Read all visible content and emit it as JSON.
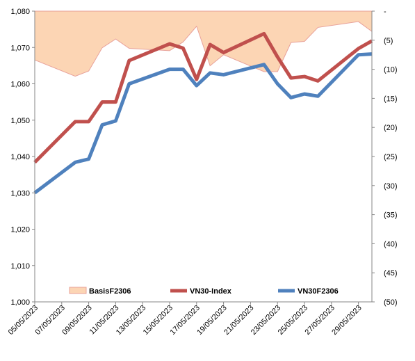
{
  "chart_data": {
    "type": "line",
    "x": [
      "05/05/2023",
      "08/05/2023",
      "09/05/2023",
      "10/05/2023",
      "11/05/2023",
      "12/05/2023",
      "15/05/2023",
      "16/05/2023",
      "17/05/2023",
      "18/05/2023",
      "19/05/2023",
      "22/05/2023",
      "23/05/2023",
      "24/05/2023",
      "25/05/2023",
      "26/05/2023",
      "29/05/2023",
      "30/05/2023"
    ],
    "x_tick_labels": [
      "05/05/2023",
      "07/05/2023",
      "09/05/2023",
      "11/05/2023",
      "13/05/2023",
      "15/05/2023",
      "17/05/2023",
      "19/05/2023",
      "21/05/2023",
      "23/05/2023",
      "25/05/2023",
      "27/05/2023",
      "29/05/2023"
    ],
    "xlim": [
      "05/05/2023",
      "30/05/2023"
    ],
    "y_left": {
      "ylim": [
        1000,
        1080
      ],
      "ticks": [
        "1,000",
        "1,010",
        "1,020",
        "1,030",
        "1,040",
        "1,050",
        "1,060",
        "1,070",
        "1,080"
      ]
    },
    "y_right": {
      "ylim": [
        0,
        50
      ],
      "reversed": true,
      "ticks": [
        "-",
        "(5)",
        "(10)",
        "(15)",
        "(20)",
        "(25)",
        "(30)",
        "(35)",
        "(40)",
        "(45)",
        "(50)"
      ]
    },
    "series": [
      {
        "name": "BasisF2306",
        "type": "area",
        "axis": "right",
        "color": "#fcd5b4",
        "edge_color": "#e8a19a",
        "values": [
          8.4,
          11.2,
          10.3,
          6.3,
          4.8,
          6.4,
          6.8,
          5.3,
          2.6,
          9.4,
          7.5,
          10.4,
          10.4,
          5.4,
          5.2,
          2.8,
          1.8,
          3.5
        ]
      },
      {
        "name": "VN30-Index",
        "type": "line",
        "axis": "left",
        "color": "#c0504d",
        "values": [
          1038.4,
          1049.6,
          1049.6,
          1055.0,
          1055.0,
          1066.4,
          1071.0,
          1069.8,
          1061.2,
          1070.8,
          1068.6,
          1073.8,
          1067.4,
          1061.6,
          1062.0,
          1060.8,
          1069.7,
          1071.8
        ]
      },
      {
        "name": "VN30F2306",
        "type": "line",
        "axis": "left",
        "color": "#4f81bd",
        "values": [
          1030.0,
          1038.4,
          1039.3,
          1048.7,
          1049.8,
          1060.0,
          1064.0,
          1064.0,
          1059.5,
          1063.0,
          1062.5,
          1065.3,
          1060.0,
          1056.2,
          1057.2,
          1056.6,
          1068.0,
          1068.2
        ]
      }
    ],
    "grid": false,
    "legend": "bottom-inside",
    "title": "",
    "xlabel": "",
    "ylabel": ""
  }
}
